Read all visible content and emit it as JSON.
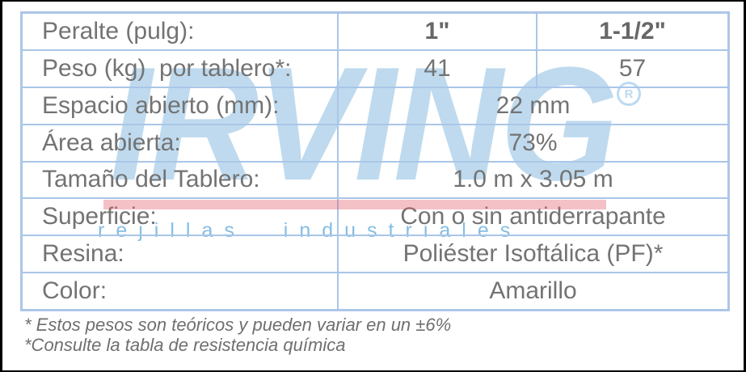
{
  "table": {
    "rows": [
      {
        "label": "Peralte (pulg):",
        "values": [
          "1\"",
          "1-1/2\""
        ]
      },
      {
        "label": "Peso (kg)  por tablero*:",
        "values": [
          "41",
          "57"
        ]
      },
      {
        "label": "Espacio abierto (mm):",
        "value": "22 mm"
      },
      {
        "label": "Área abierta:",
        "value": "73%"
      },
      {
        "label": "Tamaño del Tablero:",
        "value": "1.0 m x 3.05 m"
      },
      {
        "label": "Superficie:",
        "value": "Con o sin antiderrapante"
      },
      {
        "label": "Resina:",
        "value": "Poliéster Isoftálica (PF)*"
      },
      {
        "label": "Color:",
        "value": "Amarillo"
      }
    ]
  },
  "footnotes": [
    "* Estos pesos son teóricos y pueden variar en un ±6%",
    "*Consulte la tabla de resistencia química"
  ],
  "watermark": {
    "brand": "IRVING",
    "registered_mark": "R",
    "tagline": "rejillas industriales"
  },
  "colors": {
    "grid_blue": "#adc6e8",
    "text_gray": "#737373",
    "watermark_blue": "#bfdaee",
    "tagline_blue": "#85bde4",
    "underline_red": "#e35b68"
  }
}
